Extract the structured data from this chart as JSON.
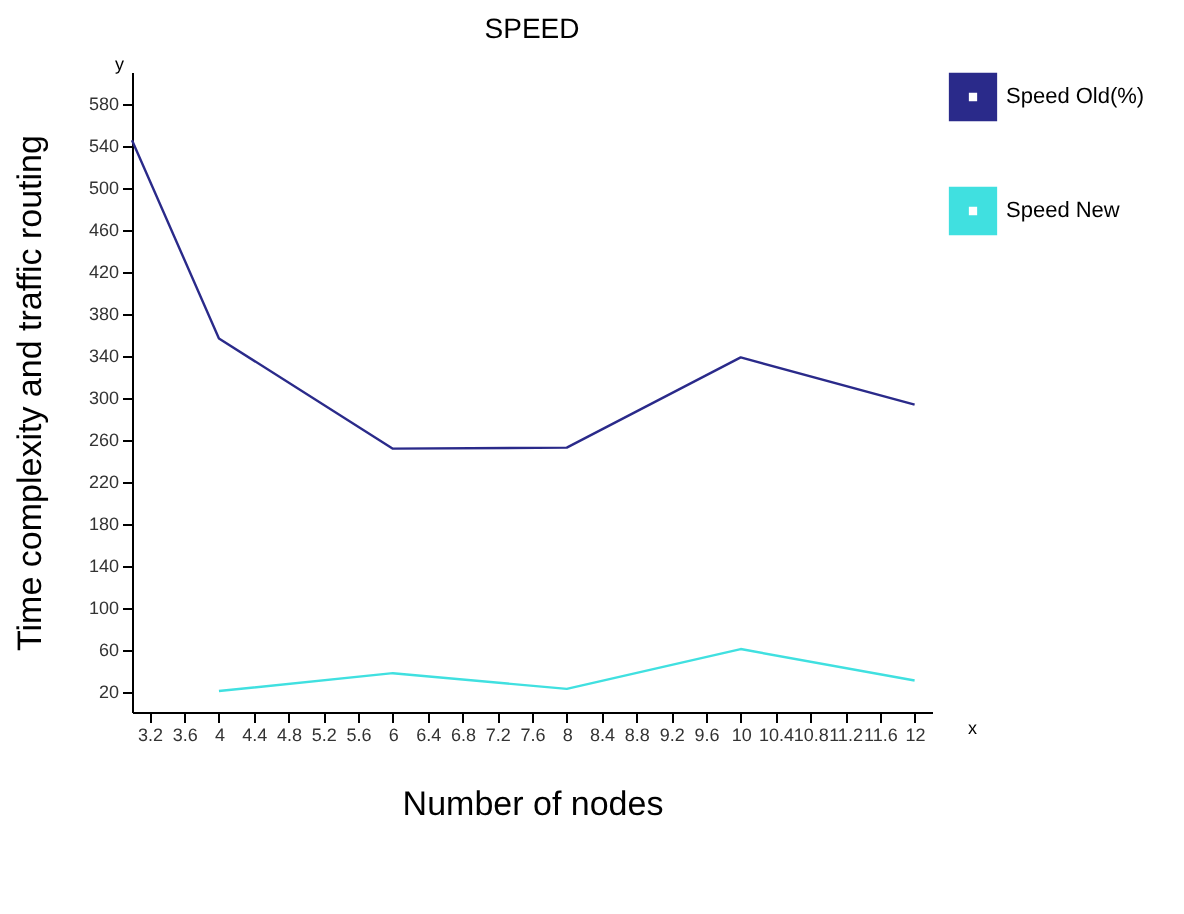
{
  "chart_data": {
    "type": "line",
    "title": "SPEED",
    "xlabel": "Number of nodes",
    "ylabel": "Time complexity and traffic routing",
    "annotations": [
      "y",
      "x"
    ],
    "series": [
      {
        "name": "Speed Old(%)",
        "color": "#2a2a8a",
        "x": [
          3,
          4,
          6,
          8,
          10,
          12
        ],
        "values": [
          545,
          356,
          251,
          252,
          338,
          293
        ]
      },
      {
        "name": "Speed New",
        "color": "#40e0e0",
        "x": [
          4,
          6,
          8,
          10,
          12
        ],
        "values": [
          20,
          37,
          22,
          60,
          30
        ]
      }
    ],
    "xlim": [
      3,
      12.2
    ],
    "ylim": [
      0,
      610
    ],
    "xticks": [
      3.2,
      3.6,
      4,
      4.4,
      4.8,
      5.2,
      5.6,
      6,
      6.4,
      6.8,
      7.2,
      7.6,
      8,
      8.4,
      8.8,
      9.2,
      9.6,
      10,
      10.4,
      10.8,
      11.2,
      11.6,
      12
    ],
    "yticks": [
      20,
      60,
      100,
      140,
      180,
      220,
      260,
      300,
      340,
      380,
      420,
      460,
      500,
      540,
      580
    ],
    "legend": "right",
    "grid": false,
    "marker": "none",
    "line_style": "solid"
  }
}
